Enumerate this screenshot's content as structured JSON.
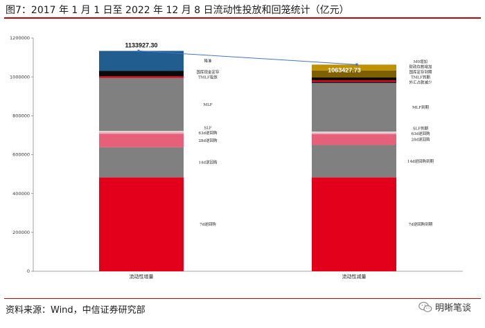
{
  "header": {
    "title": "图7：2017 年 1 月 1 日至 2022 年 12 月 8 日流动性投放和回笼统计（亿元）"
  },
  "footer": {
    "source": "资料来源：Wind，中信证券研究部",
    "brand": "明晰笔谈",
    "brand_icon": "wechat-icon"
  },
  "chart_data": {
    "type": "bar",
    "stacked": true,
    "categories": [
      "流动性增量",
      "流动性减量"
    ],
    "ylim": [
      0,
      1200000
    ],
    "yticks": [
      0,
      200000,
      400000,
      600000,
      800000,
      1000000,
      1200000
    ],
    "totals": [
      {
        "category": "流动性增量",
        "value": 1133927.3,
        "label": "1133927.30"
      },
      {
        "category": "流动性减量",
        "value": 1063427.73,
        "label": "1063427.73"
      }
    ],
    "stacks": [
      {
        "category": "流动性增量",
        "segments": [
          {
            "name": "7d逆回购",
            "value": 483000,
            "color": "#e3001b"
          },
          {
            "name": "14d逆回购",
            "value": 155000,
            "color": "#808080"
          },
          {
            "name": "28d逆回购",
            "value": 70000,
            "color": "#e6607a"
          },
          {
            "name": "63d逆回购",
            "value": 8000,
            "color": "#f3aab8"
          },
          {
            "name": "SLF",
            "value": 6000,
            "color": "#dcdcdc"
          },
          {
            "name": "MLF",
            "value": 273000,
            "color": "#808080"
          },
          {
            "name": "TMLF投放",
            "value": 8000,
            "color": "#e3001b"
          },
          {
            "name": "国库现金定存",
            "value": 28000,
            "color": "#0a0a0a"
          },
          {
            "name": "降准",
            "value": 102927.3,
            "color": "#215e8f"
          }
        ]
      },
      {
        "category": "流动性减量",
        "segments": [
          {
            "name": "7d逆回购到期",
            "value": 483000,
            "color": "#e3001b"
          },
          {
            "name": "14d逆回购到期",
            "value": 167000,
            "color": "#808080"
          },
          {
            "name": "28d逆回购",
            "value": 55000,
            "color": "#e6607a"
          },
          {
            "name": "63d逆回购",
            "value": 8000,
            "color": "#f3aab8"
          },
          {
            "name": "SLF到期",
            "value": 6000,
            "color": "#dcdcdc"
          },
          {
            "name": "MLF到期",
            "value": 250000,
            "color": "#808080"
          },
          {
            "name": "外汇占款减少",
            "value": 6000,
            "color": "#0a0a0a"
          },
          {
            "name": "TMLF到期",
            "value": 8000,
            "color": "#e3001b"
          },
          {
            "name": "国库定存到期",
            "value": 14000,
            "color": "#0a0a0a"
          },
          {
            "name": "财政存款增加",
            "value": 36427.73,
            "color": "#7f6000"
          },
          {
            "name": "M0增加",
            "value": 30000,
            "color": "#bf9000"
          }
        ]
      }
    ],
    "connector_color": "#4472c4"
  }
}
